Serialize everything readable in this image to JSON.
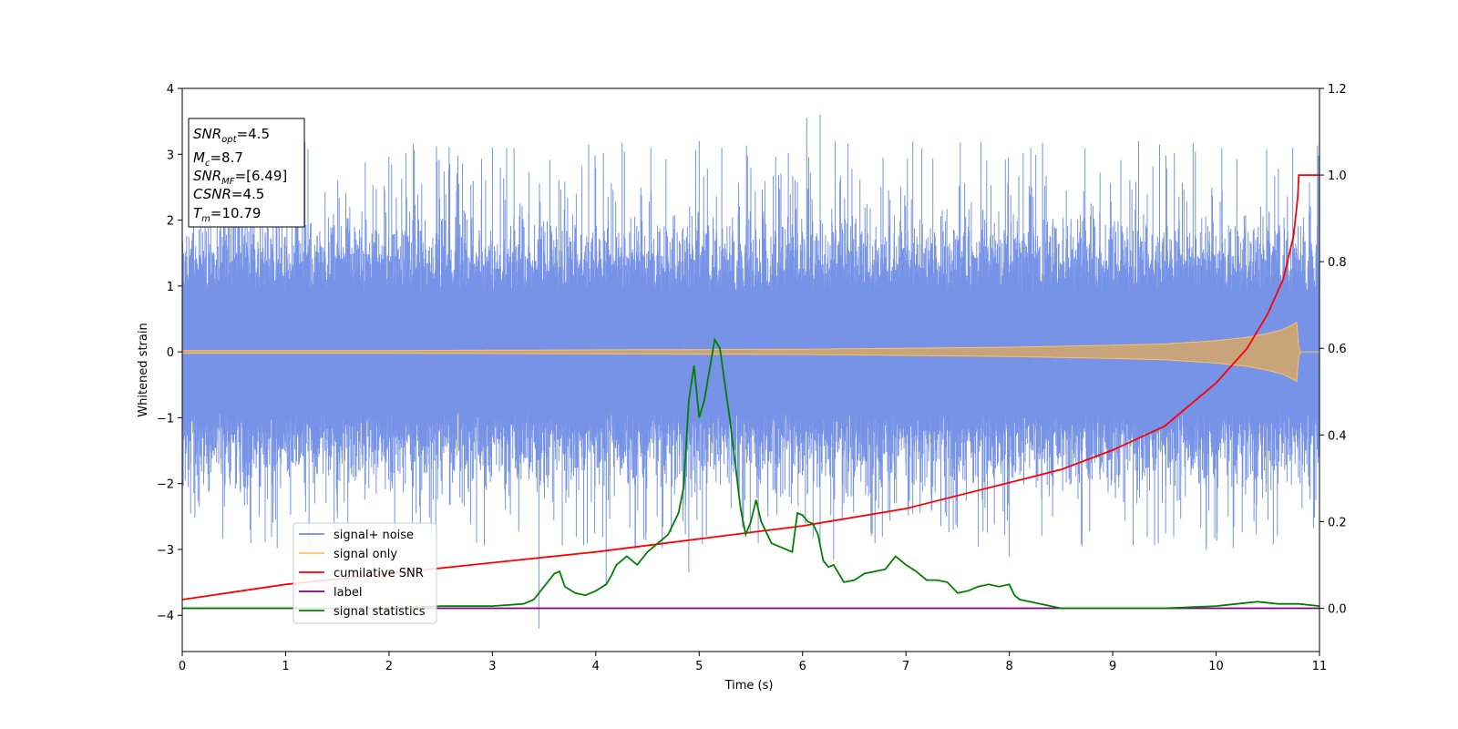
{
  "chart_data": {
    "type": "line",
    "title": "",
    "xlabel": "Time (s)",
    "ylabel": "Whitened strain",
    "ylabel_right": "",
    "xlim": [
      0,
      11
    ],
    "ylim": [
      -4.55,
      4
    ],
    "ylim_right": [
      -0.1,
      1.2
    ],
    "x_ticks": [
      0,
      1,
      2,
      3,
      4,
      5,
      6,
      7,
      8,
      9,
      10,
      11
    ],
    "y_ticks": [
      -4,
      -3,
      -2,
      -1,
      0,
      1,
      2,
      3,
      4
    ],
    "y_ticks_right": [
      0.0,
      0.2,
      0.4,
      0.6,
      0.8,
      1.0,
      1.2
    ],
    "y_ticks_right_labels": [
      "0.0",
      "0.2",
      "0.4",
      "0.6",
      "0.8",
      "1.0",
      "1.2"
    ],
    "grid": false,
    "legend_position": "lower-left",
    "info_box": {
      "snr_opt": {
        "base": "SNR",
        "sub": "opt",
        "value": "=4.5"
      },
      "mc": {
        "base": "M",
        "sub": "c",
        "value": "=8.7"
      },
      "snr_mf": {
        "base": "SNR",
        "sub": "MF",
        "value": "=[6.49]"
      },
      "csnr": {
        "base": "CSNR",
        "value": "=4.5"
      },
      "tm": {
        "base": "T",
        "sub": "m",
        "value": "=10.79"
      }
    },
    "series": [
      {
        "name": "signal+ noise",
        "color": "#6f8de6",
        "axis": "left",
        "description_values": "noise envelope ~ ±1.6, peaks up to 3.6 near t=6.1, min ~ -4.2 near t=3.45"
      },
      {
        "name": "signal only",
        "color": "#ffc266",
        "axis": "left",
        "x": [
          0,
          2,
          4,
          6,
          8,
          9,
          9.5,
          10,
          10.3,
          10.5,
          10.65,
          10.75,
          10.79,
          10.8,
          11
        ],
        "amplitude": [
          0.02,
          0.02,
          0.03,
          0.04,
          0.07,
          0.1,
          0.12,
          0.17,
          0.22,
          0.28,
          0.34,
          0.42,
          0.46,
          0,
          0
        ]
      },
      {
        "name": "cumilative SNR",
        "color": "#ff0000",
        "axis": "right",
        "x": [
          0,
          1,
          2,
          3,
          4,
          5,
          6,
          7,
          8,
          8.5,
          9,
          9.5,
          10,
          10.3,
          10.5,
          10.65,
          10.75,
          10.79,
          10.8,
          11
        ],
        "y": [
          0.02,
          0.055,
          0.08,
          0.105,
          0.13,
          0.16,
          0.19,
          0.23,
          0.29,
          0.32,
          0.365,
          0.42,
          0.52,
          0.6,
          0.68,
          0.76,
          0.86,
          0.95,
          1.0,
          1.0
        ]
      },
      {
        "name": "label",
        "color": "#800080",
        "axis": "right",
        "x": [
          0,
          11
        ],
        "y": [
          0,
          0
        ]
      },
      {
        "name": "signal statistics",
        "color": "#008000",
        "axis": "right",
        "x": [
          0,
          1,
          2,
          2.5,
          3,
          3.3,
          3.4,
          3.5,
          3.6,
          3.65,
          3.7,
          3.8,
          3.9,
          4.0,
          4.1,
          4.15,
          4.2,
          4.3,
          4.4,
          4.5,
          4.6,
          4.7,
          4.8,
          4.85,
          4.9,
          4.95,
          5.0,
          5.05,
          5.1,
          5.15,
          5.2,
          5.3,
          5.4,
          5.45,
          5.5,
          5.55,
          5.6,
          5.7,
          5.8,
          5.9,
          5.95,
          6.0,
          6.05,
          6.1,
          6.15,
          6.2,
          6.25,
          6.3,
          6.4,
          6.5,
          6.6,
          6.7,
          6.8,
          6.9,
          6.95,
          7.0,
          7.1,
          7.2,
          7.3,
          7.4,
          7.5,
          7.6,
          7.7,
          7.8,
          7.9,
          8.0,
          8.05,
          8.1,
          8.2,
          8.3,
          8.4,
          8.5,
          9,
          9.5,
          10,
          10.2,
          10.4,
          10.6,
          10.8,
          11
        ],
        "y": [
          0.0,
          0.0,
          0.0,
          0.005,
          0.005,
          0.01,
          0.02,
          0.05,
          0.08,
          0.085,
          0.05,
          0.035,
          0.03,
          0.04,
          0.055,
          0.075,
          0.1,
          0.12,
          0.1,
          0.13,
          0.15,
          0.17,
          0.22,
          0.28,
          0.48,
          0.56,
          0.44,
          0.48,
          0.55,
          0.62,
          0.6,
          0.43,
          0.23,
          0.17,
          0.2,
          0.25,
          0.2,
          0.15,
          0.14,
          0.13,
          0.22,
          0.215,
          0.2,
          0.195,
          0.17,
          0.11,
          0.095,
          0.1,
          0.06,
          0.065,
          0.08,
          0.085,
          0.09,
          0.12,
          0.11,
          0.1,
          0.085,
          0.065,
          0.065,
          0.06,
          0.035,
          0.04,
          0.05,
          0.055,
          0.05,
          0.055,
          0.03,
          0.02,
          0.015,
          0.01,
          0.005,
          0.0,
          0.0,
          0.0,
          0.005,
          0.01,
          0.015,
          0.01,
          0.01,
          0.005
        ]
      }
    ]
  }
}
